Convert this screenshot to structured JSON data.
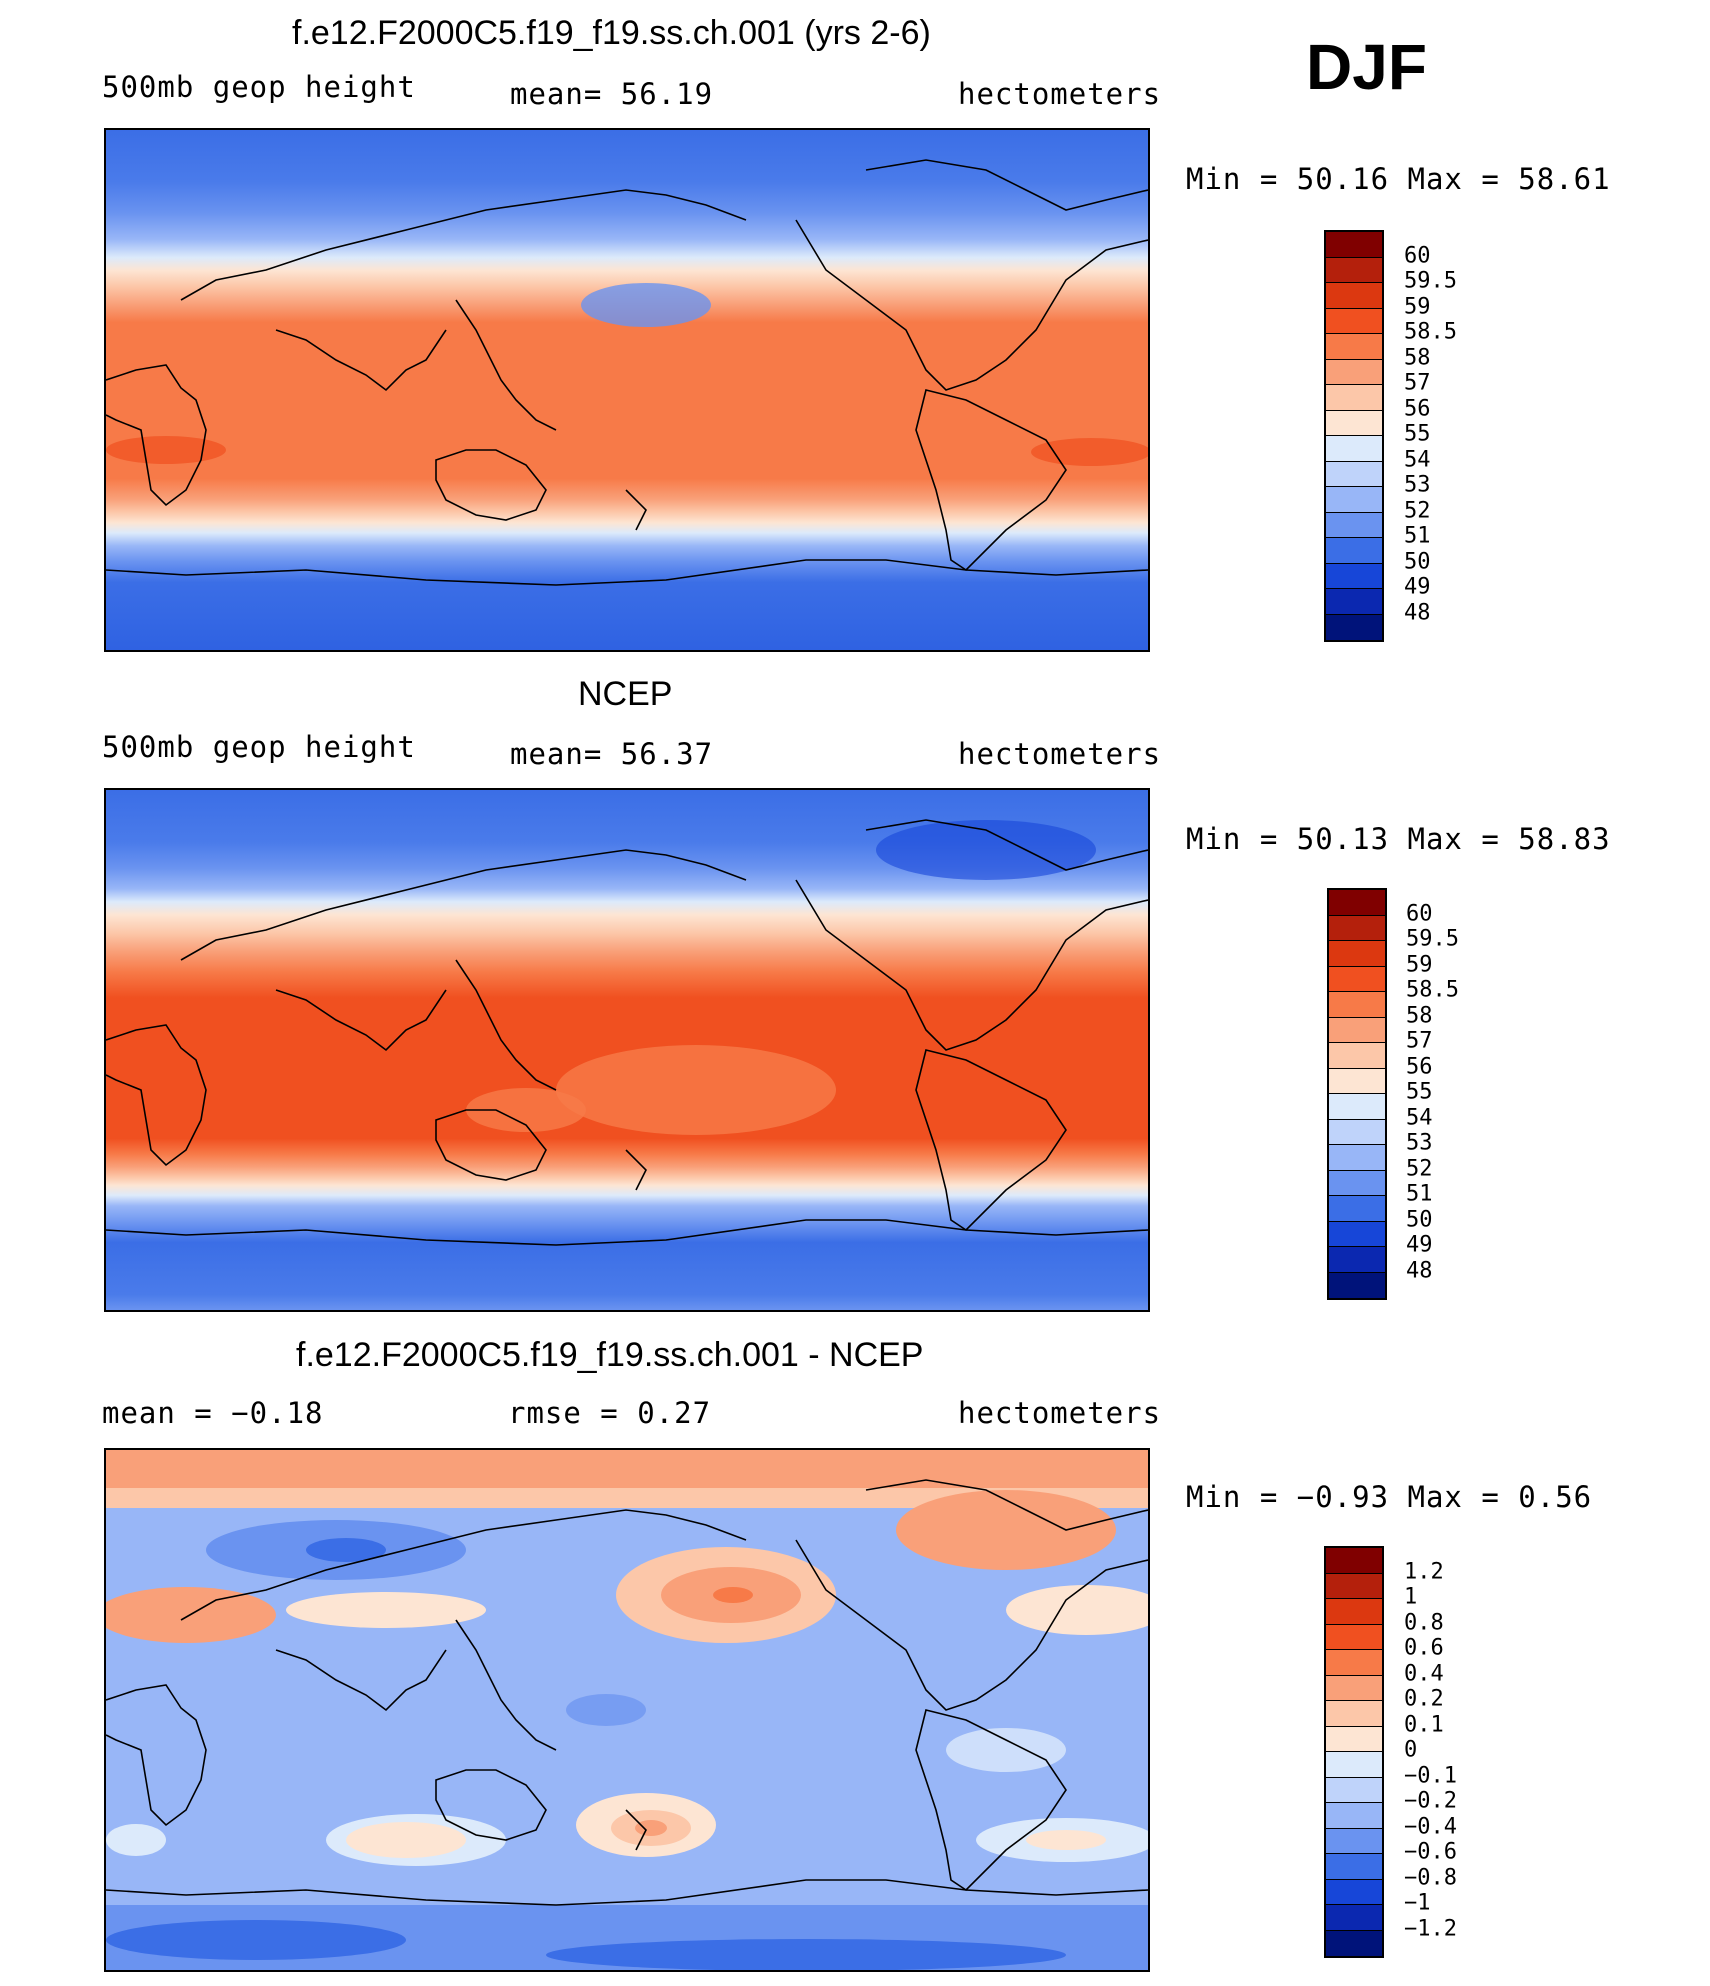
{
  "season": "DJF",
  "panels": [
    {
      "id": "model",
      "title": "f.e12.F2000C5.f19_f19.ss.ch.001 (yrs 2-6)",
      "left_label": "500mb  geop  height",
      "center_label": "mean=   56.19",
      "right_label": "hectometers",
      "minmax": "Min  =    50.16  Max  =    58.61",
      "colorbar": {
        "labels": [
          "60",
          "59.5",
          "59",
          "58.5",
          "58",
          "57",
          "56",
          "55",
          "54",
          "53",
          "52",
          "51",
          "50",
          "49",
          "48"
        ],
        "colors": [
          "#800000",
          "#B4200C",
          "#DC3810",
          "#F05020",
          "#F77A48",
          "#F9A079",
          "#FCC7A9",
          "#FDE5D3",
          "#DCEAFB",
          "#BFD3FA",
          "#98B6F7",
          "#6A93F0",
          "#3B6EE6",
          "#1746D8",
          "#0B28B0",
          "#00137A"
        ]
      }
    },
    {
      "id": "obs",
      "title": "NCEP",
      "left_label": "500mb  geop  height",
      "center_label": "mean=   56.37",
      "right_label": "hectometers",
      "minmax": "Min  =    50.13  Max  =    58.83",
      "colorbar": {
        "labels": [
          "60",
          "59.5",
          "59",
          "58.5",
          "58",
          "57",
          "56",
          "55",
          "54",
          "53",
          "52",
          "51",
          "50",
          "49",
          "48"
        ],
        "colors": [
          "#800000",
          "#B4200C",
          "#DC3810",
          "#F05020",
          "#F77A48",
          "#F9A079",
          "#FCC7A9",
          "#FDE5D3",
          "#DCEAFB",
          "#BFD3FA",
          "#98B6F7",
          "#6A93F0",
          "#3B6EE6",
          "#1746D8",
          "#0B28B0",
          "#00137A"
        ]
      }
    },
    {
      "id": "diff",
      "title": "f.e12.F2000C5.f19_f19.ss.ch.001 - NCEP",
      "left_label": "mean  =    −0.18",
      "center_label": "rmse  =     0.27",
      "right_label": "hectometers",
      "minmax": "Min  =   −0.93  Max  =     0.56",
      "colorbar": {
        "labels": [
          "1.2",
          "1",
          "0.8",
          "0.6",
          "0.4",
          "0.2",
          "0.1",
          "0",
          "−0.1",
          "−0.2",
          "−0.4",
          "−0.6",
          "−0.8",
          "−1",
          "−1.2"
        ],
        "colors": [
          "#800000",
          "#B4200C",
          "#DC3810",
          "#F05020",
          "#F77A48",
          "#F9A079",
          "#FCC7A9",
          "#FDE5D3",
          "#DCEAFB",
          "#BFD3FA",
          "#98B6F7",
          "#6A93F0",
          "#3B6EE6",
          "#1746D8",
          "#0B28B0",
          "#00137A"
        ]
      }
    }
  ]
}
